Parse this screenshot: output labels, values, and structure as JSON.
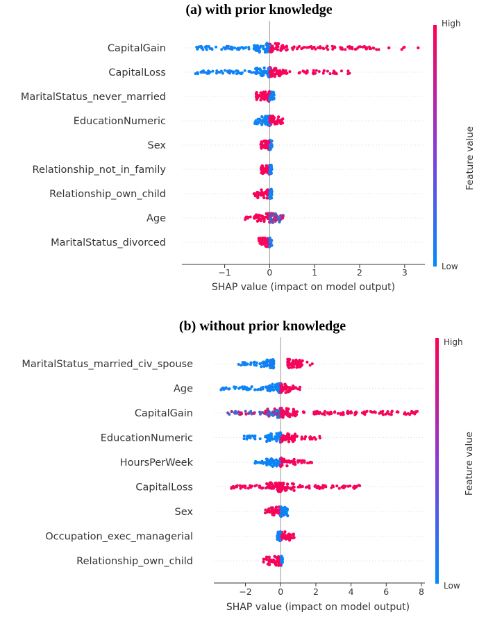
{
  "chart_data": [
    {
      "type": "scatter",
      "subtype": "shap-beeswarm",
      "title": "(a) with prior knowledge",
      "xlabel": "SHAP value (impact on model output)",
      "xlim": [
        -1.95,
        3.45
      ],
      "xticks": [
        -1,
        0,
        1,
        2,
        3
      ],
      "xtick_labels": [
        "−1",
        "0",
        "1",
        "2",
        "3"
      ],
      "colorbar": {
        "title": "Feature value",
        "high": "High",
        "low": "Low",
        "low_color": "#008bfb",
        "high_color": "#ff0052"
      },
      "features": [
        {
          "name": "CapitalGain",
          "neg_min": -1.65,
          "pos_max": 3.3,
          "dense_pos": 2.4,
          "outliers": [
            2.65,
            3.3
          ],
          "neg_color": "low",
          "pos_color": "high"
        },
        {
          "name": "CapitalLoss",
          "neg_min": -1.65,
          "pos_max": 1.8,
          "dense_pos": 1.55,
          "outliers": [],
          "neg_color": "low",
          "pos_color": "high"
        },
        {
          "name": "MaritalStatus_never_married",
          "neg_min": -0.3,
          "pos_max": 0.1,
          "neg_color": "high",
          "pos_color": "low"
        },
        {
          "name": "EducationNumeric",
          "neg_min": -0.35,
          "pos_max": 0.3,
          "neg_color": "low",
          "pos_color": "high"
        },
        {
          "name": "Sex",
          "neg_min": -0.2,
          "pos_max": 0.05,
          "neg_color": "high",
          "pos_color": "low"
        },
        {
          "name": "Relationship_not_in_family",
          "neg_min": -0.2,
          "pos_max": 0.05,
          "neg_color": "high",
          "pos_color": "low"
        },
        {
          "name": "Relationship_own_child",
          "neg_min": -0.35,
          "pos_max": 0.05,
          "neg_color": "high",
          "pos_color": "low"
        },
        {
          "name": "Age",
          "neg_min": -0.6,
          "pos_max": 0.3,
          "neg_color": "high",
          "pos_color": "mixed"
        },
        {
          "name": "MaritalStatus_divorced",
          "neg_min": -0.25,
          "pos_max": 0.05,
          "neg_color": "high",
          "pos_color": "low"
        }
      ]
    },
    {
      "type": "scatter",
      "subtype": "shap-beeswarm",
      "title": "(b) without prior knowledge",
      "xlabel": "SHAP value (impact on model output)",
      "xlim": [
        -3.8,
        8.2
      ],
      "xticks": [
        -2,
        0,
        2,
        4,
        6,
        8
      ],
      "xtick_labels": [
        "−2",
        "0",
        "2",
        "4",
        "6",
        "8"
      ],
      "colorbar": {
        "title": "Feature value",
        "high": "High",
        "low": "Low",
        "low_color": "#008bfb",
        "high_color": "#ff0052"
      },
      "features": [
        {
          "name": "MaritalStatus_married_civ_spouse",
          "neg_min": -2.4,
          "neg_max": -0.4,
          "pos_min": 0.4,
          "pos_max": 1.8,
          "neg_color": "low",
          "pos_color": "high"
        },
        {
          "name": "Age",
          "neg_min": -3.4,
          "pos_max": 1.1,
          "neg_color": "low",
          "pos_color": "high"
        },
        {
          "name": "CapitalGain",
          "neg_min": -3.0,
          "pos_max": 7.8,
          "outliers": [
            -3.0,
            -1.8
          ],
          "neg_color": "mixed",
          "pos_color": "high"
        },
        {
          "name": "EducationNumeric",
          "neg_min": -2.1,
          "pos_max": 2.3,
          "neg_color": "low",
          "pos_color": "high"
        },
        {
          "name": "HoursPerWeek",
          "neg_min": -1.6,
          "pos_max": 1.8,
          "neg_color": "low",
          "pos_color": "high"
        },
        {
          "name": "CapitalLoss",
          "neg_min": -2.9,
          "pos_max": 4.6,
          "neg_color": "high",
          "pos_color": "high"
        },
        {
          "name": "Sex",
          "neg_min": -0.9,
          "pos_max": 0.4,
          "neg_color": "high",
          "pos_color": "low"
        },
        {
          "name": "Occupation_exec_managerial",
          "neg_min": -0.2,
          "pos_max": 0.8,
          "neg_color": "low",
          "pos_color": "high"
        },
        {
          "name": "Relationship_own_child",
          "neg_min": -1.0,
          "pos_max": 0.1,
          "neg_color": "high",
          "pos_color": "low"
        }
      ]
    }
  ]
}
